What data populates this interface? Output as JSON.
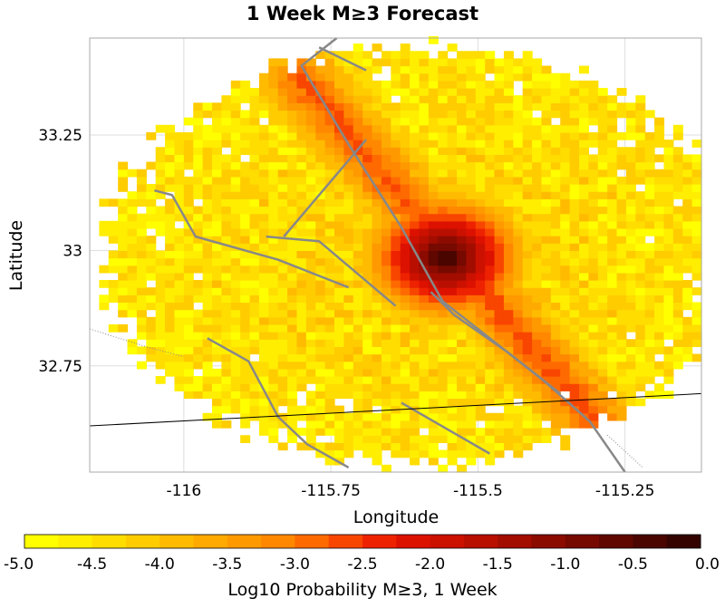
{
  "chart_data": {
    "type": "heatmap",
    "title": "1 Week M≥3 Forecast",
    "xlabel": "Longitude",
    "ylabel": "Latitude",
    "xlim": [
      -116.16,
      -115.12
    ],
    "ylim": [
      32.52,
      33.46
    ],
    "x_ticks": [
      {
        "value": -116,
        "label": "-116"
      },
      {
        "value": -115.75,
        "label": "-115.75"
      },
      {
        "value": -115.5,
        "label": "-115.5"
      },
      {
        "value": -115.25,
        "label": "-115.25"
      }
    ],
    "y_ticks": [
      {
        "value": 33.25,
        "label": "33.25"
      },
      {
        "value": 33,
        "label": "33"
      },
      {
        "value": 32.75,
        "label": "32.75"
      }
    ],
    "grid": true,
    "peak": {
      "lon": -115.555,
      "lat": 32.985,
      "log10_prob": -0.1
    },
    "field": {
      "center": {
        "lon": -115.6,
        "lat": 32.99
      },
      "region_radius_deg": 0.45,
      "background_log10": -5.0,
      "fault_zone": {
        "from": {
          "lon": -115.8,
          "lat": 33.37
        },
        "to": {
          "lon": -115.28,
          "lat": 32.6
        },
        "ridge_log10": -2.6,
        "width_deg": 0.06
      },
      "cell_size_deg": 0.016
    },
    "colorbar": {
      "label": "Log10 Probability M≥3, 1 Week",
      "min": -5.0,
      "max": 0.0,
      "tick_labels": [
        "-5.0",
        "-4.5",
        "-4.0",
        "-3.5",
        "-3.0",
        "-2.5",
        "-2.0",
        "-1.5",
        "-1.0",
        "-0.5",
        "0.0"
      ],
      "colors": [
        "#ffff00",
        "#ffee00",
        "#ffdd00",
        "#ffcc00",
        "#ffbb00",
        "#ffaa00",
        "#ff9900",
        "#ff8800",
        "#ff6a00",
        "#f84500",
        "#ee2200",
        "#dd1100",
        "#cc1100",
        "#b80f00",
        "#a20d00",
        "#8c0b00",
        "#760900",
        "#600700",
        "#4a0500",
        "#340300"
      ]
    },
    "faults": [
      [
        [
          -115.74,
          33.46
        ],
        [
          -115.8,
          33.4
        ],
        [
          -115.72,
          33.23
        ],
        [
          -115.63,
          33.05
        ],
        [
          -115.56,
          32.89
        ],
        [
          -115.39,
          32.72
        ],
        [
          -115.31,
          32.63
        ],
        [
          -115.25,
          32.52
        ]
      ],
      [
        [
          -115.77,
          33.44
        ],
        [
          -115.69,
          33.39
        ]
      ],
      [
        [
          -115.58,
          32.91
        ],
        [
          -115.54,
          32.86
        ],
        [
          -115.45,
          32.78
        ],
        [
          -115.36,
          32.69
        ]
      ],
      [
        [
          -116.05,
          33.13
        ],
        [
          -116.02,
          33.12
        ],
        [
          -115.98,
          33.03
        ],
        [
          -115.84,
          32.98
        ],
        [
          -115.72,
          32.92
        ]
      ],
      [
        [
          -115.86,
          33.03
        ],
        [
          -115.77,
          33.02
        ],
        [
          -115.64,
          32.88
        ]
      ],
      [
        [
          -115.83,
          33.03
        ],
        [
          -115.69,
          33.24
        ]
      ],
      [
        [
          -115.96,
          32.81
        ],
        [
          -115.89,
          32.76
        ],
        [
          -115.84,
          32.64
        ],
        [
          -115.79,
          32.58
        ],
        [
          -115.72,
          32.53
        ]
      ],
      [
        [
          -115.63,
          32.67
        ],
        [
          -115.48,
          32.56
        ]
      ]
    ],
    "thin_line": {
      "from": {
        "lon": -116.16,
        "lat": 32.62
      },
      "to": {
        "lon": -115.12,
        "lat": 32.69
      }
    },
    "dotted_segments": [
      [
        [
          -116.16,
          32.83
        ],
        [
          -116.06,
          32.79
        ],
        [
          -116.0,
          32.77
        ]
      ],
      [
        [
          -115.28,
          32.6
        ],
        [
          -115.22,
          32.53
        ]
      ]
    ],
    "colors": {
      "fault_line": "#888888",
      "thin_line": "#000000",
      "grid": "#dddddd",
      "frame": "#aaaaaa"
    }
  }
}
